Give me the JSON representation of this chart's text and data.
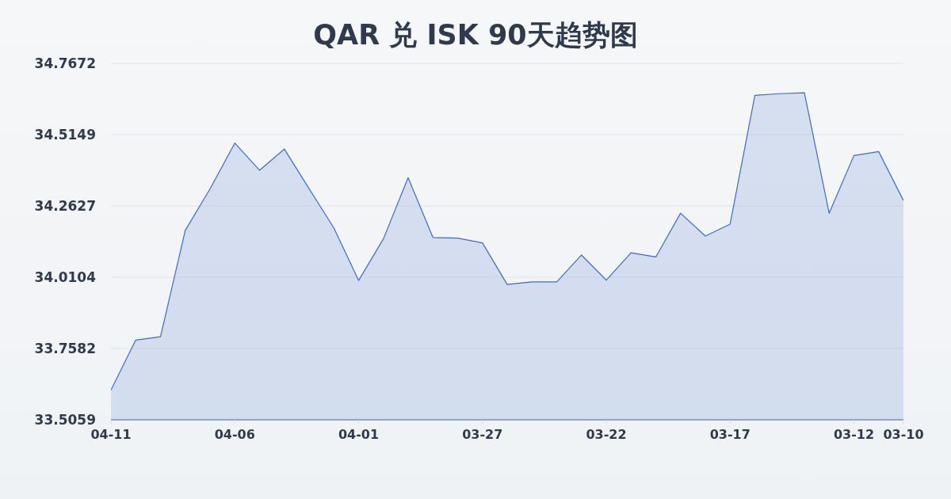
{
  "chart_data": {
    "type": "area",
    "title": "QAR 兑 ISK 90天趋势图",
    "categories": [
      "04-11",
      null,
      null,
      null,
      null,
      "04-06",
      null,
      null,
      null,
      null,
      "04-01",
      null,
      null,
      null,
      null,
      "03-27",
      null,
      null,
      null,
      null,
      "03-22",
      null,
      null,
      null,
      null,
      "03-17",
      null,
      null,
      null,
      null,
      "03-12",
      null,
      "03-10"
    ],
    "values": [
      33.611,
      33.788,
      33.8,
      34.176,
      34.323,
      34.485,
      34.389,
      34.464,
      34.324,
      34.185,
      33.999,
      34.146,
      34.363,
      34.151,
      34.149,
      34.132,
      33.985,
      33.994,
      33.994,
      34.089,
      34.0,
      34.097,
      34.082,
      34.237,
      34.156,
      34.198,
      34.654,
      34.66,
      34.663,
      34.237,
      34.441,
      34.455,
      34.282
    ],
    "color": "#3b6bc9",
    "ylim": [
      33.5059,
      34.7672
    ],
    "yticks": [
      33.5059,
      33.7582,
      34.0104,
      34.2627,
      34.5149,
      34.7672
    ],
    "grid": "y"
  }
}
